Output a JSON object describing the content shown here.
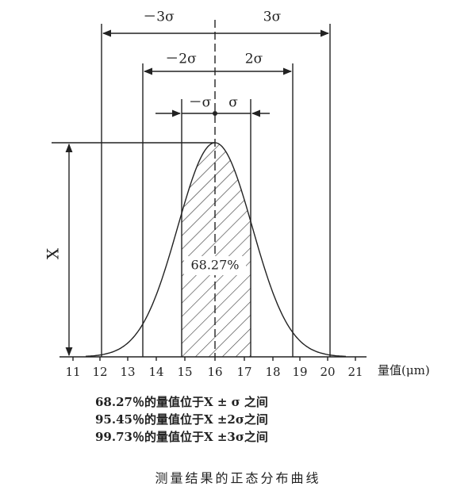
{
  "diagram": {
    "sigma_labels": {
      "minus_3": "－3σ",
      "plus_3": "3σ",
      "minus_2": "－2σ",
      "plus_2": "2σ",
      "minus_1": "－σ",
      "plus_1": "σ"
    },
    "height_label": "X",
    "region_label": "68.27%",
    "axis_ticks": [
      "11",
      "12",
      "13",
      "14",
      "15",
      "16",
      "17",
      "18",
      "19",
      "20",
      "21"
    ],
    "axis_label": "量值(μm)"
  },
  "notes": [
    "68.27％的量值位于X ± σ 之间",
    "95.45％的量值位于X ±2σ之间",
    "99.73％的量值位于X ±3σ之间"
  ],
  "caption": "测量结果的正态分布曲线"
}
